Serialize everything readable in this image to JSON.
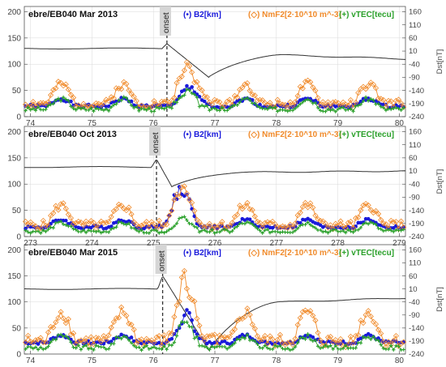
{
  "chart_data": [
    {
      "type": "line",
      "title": "ebre/EB040  Mar 2013",
      "onset_label": "onset",
      "onset_x": 76.22,
      "xlim": [
        73.9,
        80.1
      ],
      "x_ticks": [
        "74",
        "75",
        "76",
        "77",
        "78",
        "79",
        "80"
      ],
      "x_tick_values": [
        74,
        75,
        76,
        77,
        78,
        79,
        80
      ],
      "ylim": [
        0,
        210
      ],
      "y_ticks": [
        "0",
        "50",
        "100",
        "150",
        "200"
      ],
      "y_tick_values": [
        0,
        50,
        100,
        150,
        200
      ],
      "y2lim": [
        -240,
        180
      ],
      "y2_ticks": [
        "160",
        "110",
        "60",
        "10",
        "-40",
        "-90",
        "-140",
        "-190",
        "-240"
      ],
      "y2_tick_values": [
        160,
        110,
        60,
        10,
        -40,
        -90,
        -140,
        -190,
        -240
      ],
      "y2label": "Dst[nT]",
      "dst": {
        "baseline": 20,
        "spike_height": 18,
        "drop_to": -90,
        "min_day": 76.9,
        "recovery_level": -5,
        "end_value": -20
      },
      "series": [
        {
          "name": "(•) B2[km]",
          "color": "#1a1adb",
          "marker": "dot",
          "base": 20,
          "amp": 14,
          "storm": 25,
          "seed": 1
        },
        {
          "name": "(◇) NmF2[2·10^10 m^-3]",
          "color": "#f08a2a",
          "marker": "diamond",
          "base": 25,
          "amp": 36,
          "storm": 55,
          "seed": 2
        },
        {
          "name": "(+) vTEC[tecu]",
          "color": "#2aa02a",
          "marker": "plus",
          "base": 14,
          "amp": 20,
          "storm": 20,
          "seed": 3
        }
      ]
    },
    {
      "type": "line",
      "title": "ebre/EB040  Oct 2013",
      "onset_label": "onset",
      "onset_x": 275.05,
      "xlim": [
        272.9,
        279.1
      ],
      "x_ticks": [
        "273",
        "274",
        "275",
        "276",
        "277",
        "278",
        "279"
      ],
      "x_tick_values": [
        273,
        274,
        275,
        276,
        277,
        278,
        279
      ],
      "ylim": [
        0,
        210
      ],
      "y_ticks": [
        "0",
        "50",
        "100",
        "150",
        "200"
      ],
      "y_tick_values": [
        0,
        50,
        100,
        150,
        200
      ],
      "y2lim": [
        -240,
        180
      ],
      "y2_ticks": [
        "160",
        "110",
        "60",
        "10",
        "-40",
        "-90",
        "-140",
        "-190",
        "-240"
      ],
      "y2_tick_values": [
        160,
        110,
        60,
        10,
        -40,
        -90,
        -140,
        -190,
        -240
      ],
      "y2label": "Dst[nT]",
      "dst": {
        "baseline": 25,
        "spike_height": 30,
        "drop_to": -50,
        "min_day": 275.3,
        "recovery_level": 5,
        "end_value": 10
      },
      "series": [
        {
          "name": "(•) B2[km]",
          "color": "#1a1adb",
          "marker": "dot",
          "base": 18,
          "amp": 14,
          "storm": 70,
          "seed": 4
        },
        {
          "name": "(◇) NmF2[2·10^10 m^-3]",
          "color": "#f08a2a",
          "marker": "diamond",
          "base": 22,
          "amp": 38,
          "storm": 40,
          "seed": 5
        },
        {
          "name": "(+) vTEC[tecu]",
          "color": "#2aa02a",
          "marker": "plus",
          "base": 10,
          "amp": 16,
          "storm": 10,
          "seed": 6
        }
      ]
    },
    {
      "type": "line",
      "title": "ebre/EB040  Mar 2015",
      "onset_label": "onset",
      "onset_x": 76.15,
      "xlim": [
        73.9,
        80.1
      ],
      "x_ticks": [
        "74",
        "75",
        "76",
        "77",
        "78",
        "79",
        "80"
      ],
      "x_tick_values": [
        74,
        75,
        76,
        77,
        78,
        79,
        80
      ],
      "ylim": [
        0,
        210
      ],
      "y_ticks": [
        "0",
        "50",
        "100",
        "150",
        "200"
      ],
      "y_tick_values": [
        0,
        50,
        100,
        150,
        200
      ],
      "y2lim": [
        -240,
        180
      ],
      "y2_ticks": [
        "160",
        "110",
        "60",
        "10",
        "-40",
        "-90",
        "-140",
        "-190",
        "-240"
      ],
      "y2_tick_values": [
        160,
        110,
        60,
        10,
        -40,
        -90,
        -140,
        -190,
        -240
      ],
      "y2label": "Dst[nT]",
      "dst": {
        "baseline": 10,
        "spike_height": 50,
        "drop_to": -225,
        "min_day": 76.9,
        "recovery_level": -40,
        "end_value": -25
      },
      "series": [
        {
          "name": "(•) B2[km]",
          "color": "#1a1adb",
          "marker": "dot",
          "base": 22,
          "amp": 14,
          "storm": 40,
          "seed": 7
        },
        {
          "name": "(◇) NmF2[2·10^10 m^-3]",
          "color": "#f08a2a",
          "marker": "diamond",
          "base": 25,
          "amp": 55,
          "storm": 80,
          "seed": 8
        },
        {
          "name": "(+) vTEC[tecu]",
          "color": "#2aa02a",
          "marker": "plus",
          "base": 12,
          "amp": 22,
          "storm": 35,
          "seed": 9
        }
      ]
    }
  ]
}
